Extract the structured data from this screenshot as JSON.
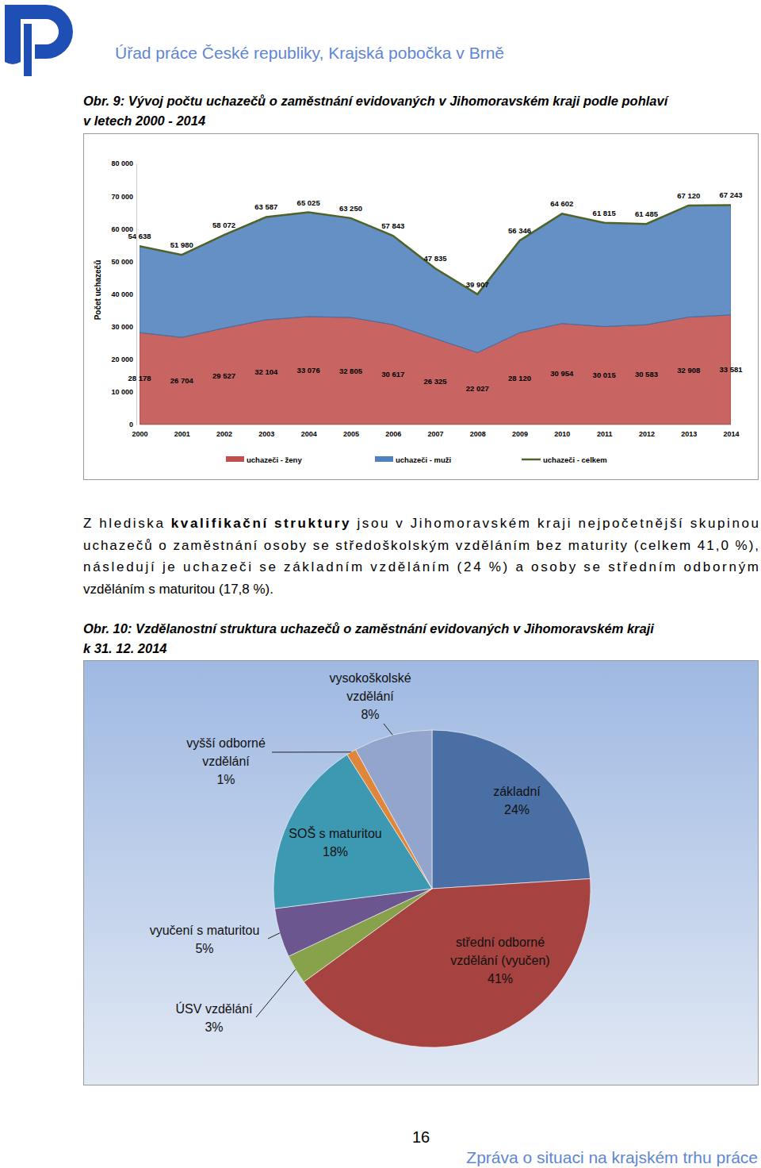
{
  "header": {
    "organization": "Úřad práce České republiky, Krajská pobočka v Brně"
  },
  "figure_captions": [
    [
      "Obr. 9: Vývoj počtu uchazečů o zaměstnání evidovaných v Jihomoravském kraji podle pohlaví",
      "v letech 2000 - 2014"
    ],
    [
      "Obr. 10: Vzdělanostní struktura uchazečů o zaměstnání evidovaných v Jihomoravském kraji",
      "k 31. 12. 2014"
    ]
  ],
  "paragraph": [
    [
      {
        "text": "Z hlediska "
      },
      {
        "text": "kvalifikační struktury",
        "bold": true
      },
      {
        "text": " jsou v Jihomoravském kraji nejpočetnější skupinou"
      }
    ],
    [
      {
        "text": "uchazečů o zaměstnání osoby se středoškolským vzděláním bez maturity (celkem 41,0 %),"
      }
    ],
    [
      {
        "text": "následují je uchazeči se základním vzděláním (24 %) a osoby se středním odborným"
      }
    ],
    [
      {
        "text": "vzděláním s maturitou (17,8 %)."
      }
    ]
  ],
  "chart_data": [
    {
      "type": "area",
      "stacked": true,
      "y_label": "Počet uchazečů",
      "categories": [
        "2000",
        "2001",
        "2002",
        "2003",
        "2004",
        "2005",
        "2006",
        "2007",
        "2008",
        "2009",
        "2010",
        "2011",
        "2012",
        "2013",
        "2014"
      ],
      "ylim": [
        0,
        80000
      ],
      "yticks": [
        0,
        {
          "value": 10000,
          "label": "10 000"
        },
        {
          "value": 20000,
          "label": "20 000"
        },
        {
          "value": 30000,
          "label": "30 000"
        },
        {
          "value": 40000,
          "label": "40 000"
        },
        {
          "value": 50000,
          "label": "50 000"
        },
        {
          "value": 60000,
          "label": "60 000"
        },
        {
          "value": 70000,
          "label": "70 000"
        },
        {
          "value": 80000,
          "label": "80 000"
        }
      ],
      "grid": false,
      "legend": "bottom",
      "series": [
        {
          "name": "uchazeči - ženy",
          "color": "#c0504d",
          "data_labels": true,
          "values": [
            28178,
            26704,
            29527,
            32104,
            33076,
            32805,
            30617,
            26325,
            22027,
            28120,
            30954,
            30015,
            30583,
            32908,
            33581
          ],
          "value_labels": [
            "28 178",
            "26 704",
            "29 527",
            "32 104",
            "33 076",
            "32 805",
            "30 617",
            "26 325",
            "22 027",
            "28 120",
            "30 954",
            "30 015",
            "30 583",
            "32 908",
            "33 581"
          ]
        },
        {
          "name": "uchazeči - muži",
          "color": "#4f81bd",
          "data_labels": false,
          "values": [
            26460,
            25276,
            28545,
            31483,
            31949,
            30445,
            27226,
            21510,
            17880,
            28226,
            33648,
            31800,
            30902,
            34212,
            33662
          ]
        },
        {
          "name": "uchazeči - celkem",
          "type": "line",
          "color": "#4f6228",
          "data_labels": true,
          "values": [
            54638,
            51980,
            58072,
            63587,
            65025,
            63250,
            57843,
            47835,
            39907,
            56346,
            64602,
            61815,
            61485,
            67120,
            67243
          ],
          "value_labels": [
            "54 638",
            "51 980",
            "58 072",
            "63 587",
            "65 025",
            "63 250",
            "57 843",
            "47 835",
            "39 907",
            "56 346",
            "64 602",
            "61 815",
            "61 485",
            "67 120",
            "67 243"
          ]
        }
      ]
    },
    {
      "type": "pie",
      "categories": [
        "základní",
        "střední odborné vzdělání (vyučen)",
        "ÚSV vzdělání",
        "vyučení s maturitou",
        "SOŠ s maturitou",
        "vyšší odborné vzdělání",
        "vysokoškolské vzdělání"
      ],
      "values": [
        24,
        41,
        3,
        5,
        18,
        1,
        8
      ],
      "value_labels": [
        "24%",
        "41%",
        "3%",
        "5%",
        "18%",
        "1%",
        "8%"
      ],
      "colors": [
        "#4a6fa5",
        "#a6423f",
        "#87a24a",
        "#6b5690",
        "#3d98b1",
        "#e0863a",
        "#93a4cd"
      ],
      "data_labels": true
    }
  ],
  "page_number": "16",
  "footer": "Zpráva o situaci na krajském trhu práce"
}
